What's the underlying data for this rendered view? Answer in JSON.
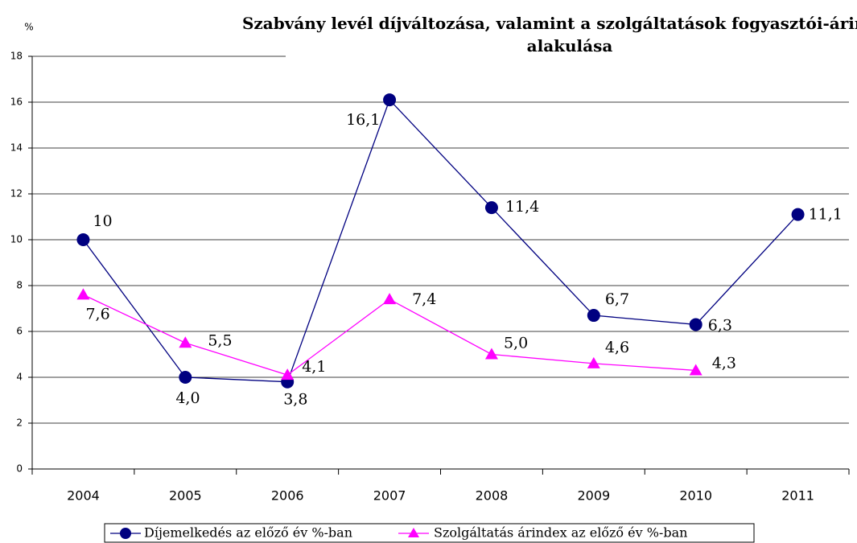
{
  "chart_data": {
    "type": "line",
    "title": "Szabvány levél díjváltozása, valamint a szolgáltatások fogyasztói-árindex alakulása",
    "y_label": "%",
    "categories": [
      "2004",
      "2005",
      "2006",
      "2007",
      "2008",
      "2009",
      "2010",
      "2011"
    ],
    "series": [
      {
        "name": "Díjemelkedés az előző év %-ban",
        "color": "#000080",
        "marker": "circle",
        "values": [
          10,
          4.0,
          3.8,
          16.1,
          11.4,
          6.7,
          6.3,
          11.1
        ],
        "value_labels": [
          "10",
          "4,0",
          "3,8",
          "16,1",
          "11,4",
          "6,7",
          "6,3",
          "11,1"
        ]
      },
      {
        "name": "Szolgáltatás árindex az előző év %-ban",
        "color": "#ff00ff",
        "marker": "triangle",
        "values": [
          7.6,
          5.5,
          4.1,
          7.4,
          5.0,
          4.6,
          4.3,
          null
        ],
        "value_labels": [
          "7,6",
          "5,5",
          "4,1",
          "7,4",
          "5,0",
          "4,6",
          "4,3",
          null
        ]
      }
    ],
    "ylim": [
      0,
      18
    ],
    "yticks": [
      0,
      2,
      4,
      6,
      8,
      10,
      12,
      14,
      16,
      18
    ],
    "grid": true
  }
}
